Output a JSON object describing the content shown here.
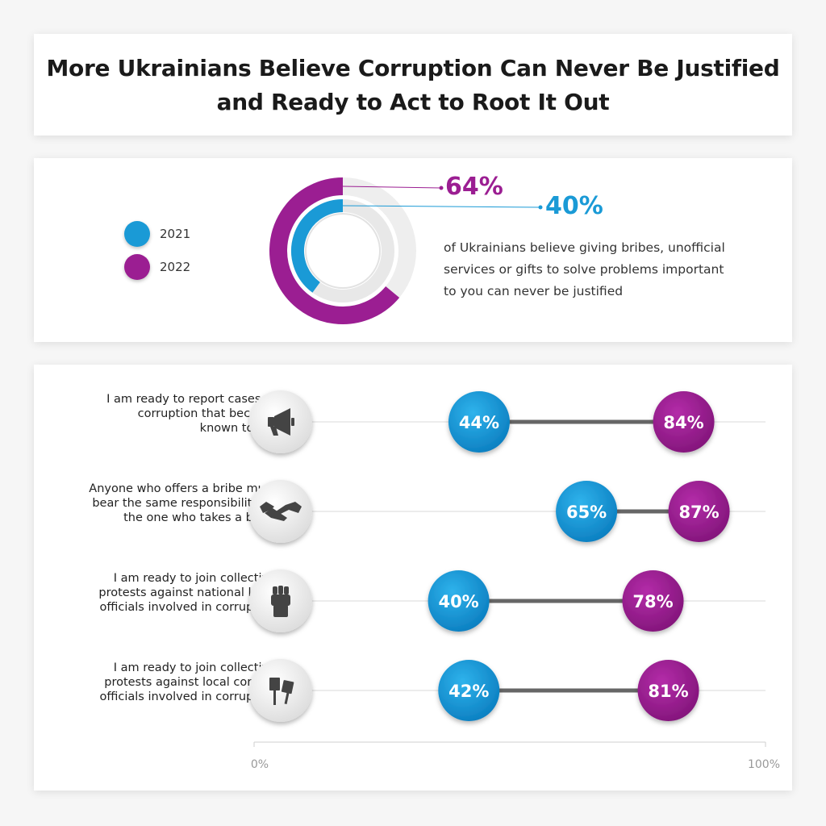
{
  "title": {
    "line1": "More Ukrainians Believe Corruption Can Never Be Justified",
    "line2": "and Ready to Act to Root It Out"
  },
  "colors": {
    "y2021": "#1a9ad6",
    "y2022": "#9b1e92",
    "track": "#e4e4e4",
    "connector": "#666666"
  },
  "legend": [
    {
      "label": "2021",
      "color": "#1a9ad6"
    },
    {
      "label": "2022",
      "color": "#9b1e92"
    }
  ],
  "donut": {
    "value_2022_label": "64%",
    "value_2021_label": "40%",
    "description": "of Ukrainians believe giving bribes, unofficial services or gifts to solve problems important to you can never be justified"
  },
  "chart_data": [
    {
      "type": "donut",
      "series": [
        {
          "name": "2021",
          "value": 40
        },
        {
          "name": "2022",
          "value": 64
        }
      ]
    },
    {
      "type": "dumbbell",
      "xlim": [
        0,
        100
      ],
      "x_tick_labels": [
        "0%",
        "100%"
      ],
      "categories": [
        "I am ready to report cases of corruption that became known to me",
        "Anyone who offers a bribe must bear the same responsibility as the one who takes a bribe",
        "I am ready to join collective protests against national level officials involved in corruption",
        "I am ready to join collective protests against local corrupt officials involved in corruption"
      ],
      "series": [
        {
          "name": "2021",
          "values": [
            44,
            65,
            40,
            42
          ],
          "labels": [
            "44%",
            "65%",
            "40%",
            "42%"
          ]
        },
        {
          "name": "2022",
          "values": [
            84,
            87,
            78,
            81
          ],
          "labels": [
            "84%",
            "87%",
            "78%",
            "81%"
          ]
        }
      ]
    }
  ],
  "rows": [
    {
      "lines": [
        "I am ready to report cases of",
        "corruption that became",
        "known to me"
      ],
      "icon": "megaphone-icon"
    },
    {
      "lines": [
        "Anyone who offers a bribe must",
        "bear the same responsibility as",
        "the one who takes a bribe"
      ],
      "icon": "handshake-icon"
    },
    {
      "lines": [
        "I am ready to join collective",
        "protests against national level",
        "officials involved in corruption"
      ],
      "icon": "fist-icon"
    },
    {
      "lines": [
        "I am ready to join collective",
        "protests against local corrupt",
        "officials involved in corruption"
      ],
      "icon": "protest-signs-icon"
    }
  ],
  "axis": {
    "min_label": "0%",
    "max_label": "100%"
  }
}
